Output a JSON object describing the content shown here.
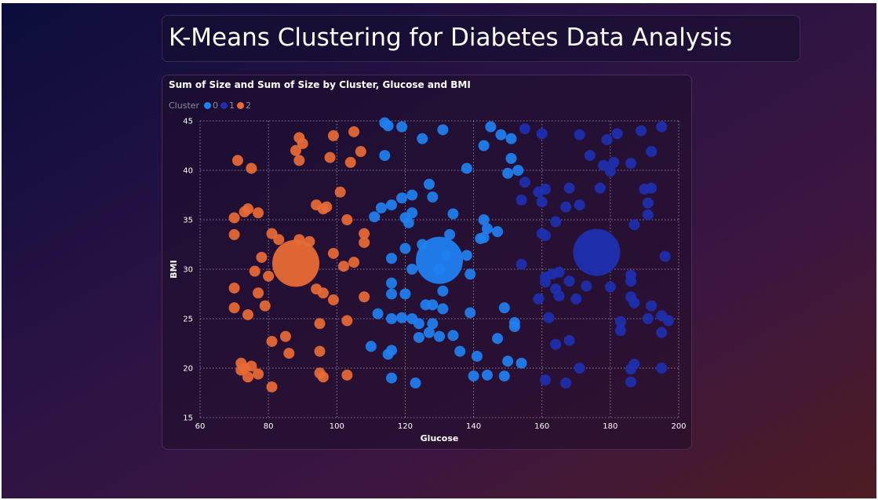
{
  "page": {
    "title": "K-Means Clustering for Diabetes Data Analysis"
  },
  "chart_data": {
    "type": "scatter",
    "title": "Sum of Size and Sum of Size by Cluster, Glucose and BMI",
    "xlabel": "Glucose",
    "ylabel": "BMI",
    "xlim": [
      60,
      200
    ],
    "ylim": [
      15,
      45
    ],
    "xticks": [
      60,
      80,
      100,
      120,
      140,
      160,
      180,
      200
    ],
    "yticks": [
      15,
      20,
      25,
      30,
      35,
      40,
      45
    ],
    "grid": true,
    "legend": {
      "title": "Cluster",
      "placement": "top-left",
      "entries": [
        {
          "label": "0",
          "color": "#1f80f0"
        },
        {
          "label": "1",
          "color": "#1d2fb0"
        },
        {
          "label": "2",
          "color": "#e96a35"
        }
      ]
    },
    "series": [
      {
        "name": "2",
        "color": "#e96a35",
        "points": [
          [
            71,
            41
          ],
          [
            75,
            40.2
          ],
          [
            70,
            35.2
          ],
          [
            73,
            35.8
          ],
          [
            74,
            36.1
          ],
          [
            77,
            35.7
          ],
          [
            70,
            33.5
          ],
          [
            81,
            33.6
          ],
          [
            83,
            33
          ],
          [
            89,
            33
          ],
          [
            92,
            32.8
          ],
          [
            78,
            31.2
          ],
          [
            76,
            29.8
          ],
          [
            80,
            29.3
          ],
          [
            70,
            28.1
          ],
          [
            77,
            27.6
          ],
          [
            79,
            26.3
          ],
          [
            74,
            25.4
          ],
          [
            70,
            26.1
          ],
          [
            85,
            23.2
          ],
          [
            81,
            22.7
          ],
          [
            86,
            21.5
          ],
          [
            72,
            20.5
          ],
          [
            73,
            20
          ],
          [
            75,
            20.2
          ],
          [
            72,
            19.8
          ],
          [
            74,
            19.1
          ],
          [
            77,
            19.4
          ],
          [
            81,
            18.1
          ],
          [
            89,
            43.3
          ],
          [
            90,
            42.7
          ],
          [
            88,
            42
          ],
          [
            89,
            41
          ],
          [
            98,
            41.3
          ],
          [
            99,
            43.5
          ],
          [
            105,
            43.9
          ],
          [
            107,
            41.9
          ],
          [
            104,
            40.8
          ],
          [
            101,
            37.8
          ],
          [
            94,
            36.5
          ],
          [
            96,
            36.1
          ],
          [
            97,
            36.3
          ],
          [
            103,
            35
          ],
          [
            108,
            33.6
          ],
          [
            108,
            32.7
          ],
          [
            99,
            31.6
          ],
          [
            105,
            30.7
          ],
          [
            102,
            30.3
          ],
          [
            94,
            28
          ],
          [
            96,
            27.6
          ],
          [
            99,
            26.9
          ],
          [
            108,
            27.2
          ],
          [
            95,
            24.5
          ],
          [
            103,
            24.8
          ],
          [
            95,
            21.7
          ],
          [
            95,
            19.5
          ],
          [
            96,
            19.1
          ],
          [
            103,
            19.3
          ]
        ]
      },
      {
        "name": "0",
        "color": "#1f80f0",
        "points": [
          [
            114,
            44.8
          ],
          [
            115,
            44.5
          ],
          [
            119,
            44.4
          ],
          [
            125,
            43.2
          ],
          [
            131,
            44.1
          ],
          [
            145,
            44.4
          ],
          [
            148,
            43.6
          ],
          [
            151,
            43.2
          ],
          [
            143,
            42.5
          ],
          [
            114,
            41.5
          ],
          [
            151,
            41.2
          ],
          [
            138,
            40.2
          ],
          [
            153,
            40
          ],
          [
            150,
            39.7
          ],
          [
            127,
            38.6
          ],
          [
            122,
            37.5
          ],
          [
            128,
            37.3
          ],
          [
            119,
            37.2
          ],
          [
            116,
            36.5
          ],
          [
            113,
            36.2
          ],
          [
            111,
            35.3
          ],
          [
            122,
            35.7
          ],
          [
            120,
            35.2
          ],
          [
            121,
            34.7
          ],
          [
            134,
            35.6
          ],
          [
            143,
            35
          ],
          [
            144,
            34.1
          ],
          [
            147,
            33.8
          ],
          [
            143,
            33.2
          ],
          [
            142,
            33.1
          ],
          [
            133,
            33.5
          ],
          [
            125,
            32.5
          ],
          [
            120,
            32.1
          ],
          [
            116,
            31.1
          ],
          [
            132,
            31.4
          ],
          [
            130,
            30
          ],
          [
            122,
            30
          ],
          [
            138,
            31.4
          ],
          [
            139,
            29.5
          ],
          [
            116,
            28.6
          ],
          [
            131,
            27.8
          ],
          [
            116,
            27.5
          ],
          [
            120,
            27.5
          ],
          [
            126,
            26.4
          ],
          [
            128,
            26.4
          ],
          [
            131,
            26
          ],
          [
            149,
            26.1
          ],
          [
            112,
            25.5
          ],
          [
            116,
            25
          ],
          [
            119,
            25.1
          ],
          [
            122,
            25
          ],
          [
            124,
            24.5
          ],
          [
            128,
            24.5
          ],
          [
            139,
            25.6
          ],
          [
            152,
            24.6
          ],
          [
            152,
            24.2
          ],
          [
            127,
            23.6
          ],
          [
            124,
            23.1
          ],
          [
            130,
            23.2
          ],
          [
            134,
            23.3
          ],
          [
            147,
            23
          ],
          [
            110,
            22.2
          ],
          [
            116,
            21.8
          ],
          [
            115,
            21.4
          ],
          [
            136,
            21.7
          ],
          [
            141,
            21.2
          ],
          [
            150,
            20.7
          ],
          [
            154,
            20.5
          ],
          [
            140,
            19.2
          ],
          [
            144,
            19.3
          ],
          [
            149,
            19.2
          ],
          [
            116,
            19
          ],
          [
            123,
            18.5
          ]
        ]
      },
      {
        "name": "1",
        "color": "#1d2fb0",
        "points": [
          [
            155,
            44.2
          ],
          [
            160,
            43.7
          ],
          [
            171,
            43.6
          ],
          [
            182,
            43.7
          ],
          [
            179,
            43.1
          ],
          [
            189,
            44
          ],
          [
            195,
            44.4
          ],
          [
            174,
            41.5
          ],
          [
            181,
            40.8
          ],
          [
            178,
            40.5
          ],
          [
            186,
            40.7
          ],
          [
            192,
            41.9
          ],
          [
            180,
            39.9
          ],
          [
            155,
            38.8
          ],
          [
            161,
            38.1
          ],
          [
            168,
            38.2
          ],
          [
            177,
            38.2
          ],
          [
            190,
            38.1
          ],
          [
            192,
            38.2
          ],
          [
            159,
            37.8
          ],
          [
            160,
            36.8
          ],
          [
            154,
            37
          ],
          [
            167,
            36.3
          ],
          [
            171,
            36.5
          ],
          [
            191,
            36.7
          ],
          [
            191,
            35.5
          ],
          [
            164,
            34.8
          ],
          [
            187,
            34.5
          ],
          [
            160,
            33.6
          ],
          [
            161,
            33.4
          ],
          [
            196,
            31.3
          ],
          [
            154,
            30.5
          ],
          [
            163,
            29.5
          ],
          [
            165,
            29.7
          ],
          [
            161,
            29.2
          ],
          [
            161,
            28.7
          ],
          [
            168,
            28.8
          ],
          [
            173,
            28.3
          ],
          [
            180,
            28.2
          ],
          [
            186,
            29.4
          ],
          [
            186,
            28.8
          ],
          [
            164,
            28
          ],
          [
            165,
            27.3
          ],
          [
            170,
            27
          ],
          [
            159,
            27
          ],
          [
            186,
            27.2
          ],
          [
            187,
            26.6
          ],
          [
            192,
            26.3
          ],
          [
            162,
            25.1
          ],
          [
            183,
            24.7
          ],
          [
            191,
            25
          ],
          [
            195,
            25.3
          ],
          [
            197,
            24.8
          ],
          [
            183,
            23.8
          ],
          [
            195,
            23.6
          ],
          [
            164,
            22.4
          ],
          [
            168,
            22.8
          ],
          [
            187,
            20.4
          ],
          [
            186,
            19.9
          ],
          [
            171,
            20
          ],
          [
            195,
            20
          ],
          [
            161,
            18.8
          ],
          [
            167,
            18.5
          ],
          [
            186,
            18.6
          ]
        ]
      }
    ],
    "centroids": [
      {
        "cluster": "2",
        "glucose": 88,
        "bmi": 30.6
      },
      {
        "cluster": "0",
        "glucose": 130,
        "bmi": 30.9
      },
      {
        "cluster": "1",
        "glucose": 176,
        "bmi": 31.7
      }
    ]
  }
}
